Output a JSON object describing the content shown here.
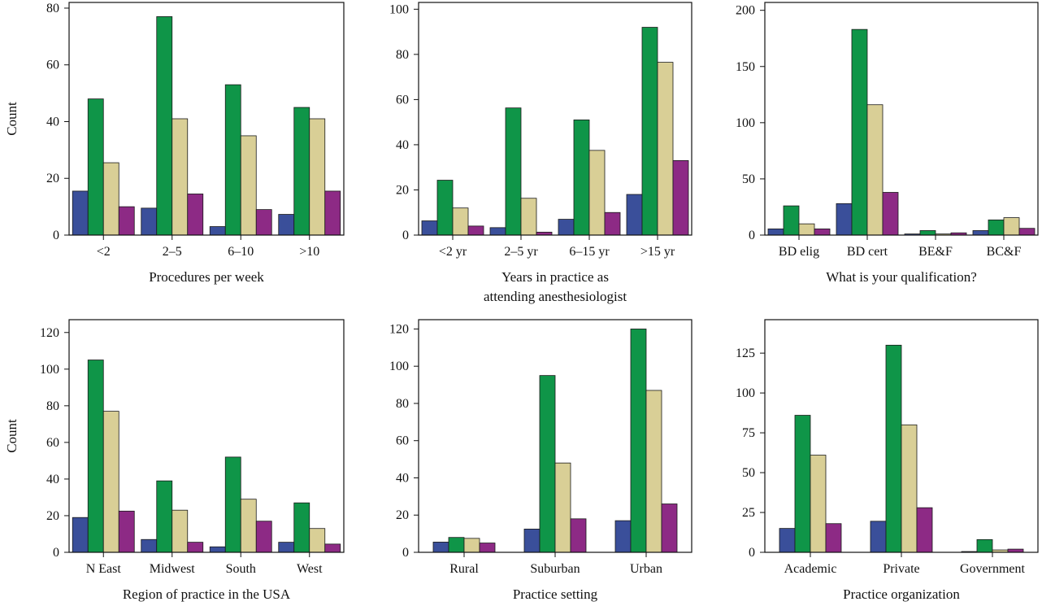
{
  "colors": {
    "series": [
      "#3a4f9a",
      "#0f9548",
      "#d9cf96",
      "#8d2a85"
    ],
    "frame": "#111111"
  },
  "chart_data": [
    {
      "type": "bar",
      "title": "",
      "ylabel": "Count",
      "xlabel": [
        "Procedures per week"
      ],
      "categories": [
        "<2",
        "2–5",
        "6–10",
        ">10"
      ],
      "ylim": [
        0,
        82
      ],
      "yticks": [
        0,
        20,
        40,
        60,
        80
      ],
      "series": [
        {
          "values": [
            15.5,
            9.5,
            3,
            7.3
          ]
        },
        {
          "values": [
            48,
            77,
            53,
            45
          ]
        },
        {
          "values": [
            25.5,
            41,
            35,
            41
          ]
        },
        {
          "values": [
            10,
            14.5,
            9,
            15.5
          ]
        }
      ],
      "grid": false,
      "legend": "none"
    },
    {
      "type": "bar",
      "title": "",
      "ylabel": "",
      "xlabel": [
        "Years in practice as",
        "attending anesthesiologist"
      ],
      "categories": [
        "<2 yr",
        "2–5 yr",
        "6–15 yr",
        ">15 yr"
      ],
      "ylim": [
        0,
        103
      ],
      "yticks": [
        0,
        20,
        40,
        60,
        80,
        100
      ],
      "series": [
        {
          "values": [
            6.3,
            3.3,
            7,
            18
          ]
        },
        {
          "values": [
            24.3,
            56.3,
            51,
            92
          ]
        },
        {
          "values": [
            12,
            16.3,
            37.5,
            76.5
          ]
        },
        {
          "values": [
            4,
            1.3,
            10,
            33
          ]
        }
      ],
      "grid": false,
      "legend": "none"
    },
    {
      "type": "bar",
      "title": "",
      "ylabel": "",
      "xlabel": [
        "What is your qualification?"
      ],
      "categories": [
        "BD elig",
        "BD cert",
        "BE&F",
        "BC&F"
      ],
      "ylim": [
        0,
        207
      ],
      "yticks": [
        0,
        50,
        100,
        150,
        200
      ],
      "series": [
        {
          "values": [
            5.5,
            28,
            1,
            4
          ]
        },
        {
          "values": [
            26,
            183,
            4,
            13.5
          ]
        },
        {
          "values": [
            10,
            116,
            1,
            15.5
          ]
        },
        {
          "values": [
            5.5,
            38,
            2,
            6
          ]
        }
      ],
      "grid": false,
      "legend": "none"
    },
    {
      "type": "bar",
      "title": "",
      "ylabel": "Count",
      "xlabel": [
        "Region of practice in the USA"
      ],
      "categories": [
        "N East",
        "Midwest",
        "South",
        "West"
      ],
      "ylim": [
        0,
        127
      ],
      "yticks": [
        0,
        20,
        40,
        60,
        80,
        100,
        120
      ],
      "series": [
        {
          "values": [
            19,
            7,
            3,
            5.5
          ]
        },
        {
          "values": [
            105,
            39,
            52,
            27
          ]
        },
        {
          "values": [
            77,
            23,
            29,
            13
          ]
        },
        {
          "values": [
            22.5,
            5.5,
            17,
            4.5
          ]
        }
      ],
      "grid": false,
      "legend": "none"
    },
    {
      "type": "bar",
      "title": "",
      "ylabel": "",
      "xlabel": [
        "Practice setting"
      ],
      "categories": [
        "Rural",
        "Suburban",
        "Urban"
      ],
      "ylim": [
        0,
        125
      ],
      "yticks": [
        0,
        20,
        40,
        60,
        80,
        100,
        120
      ],
      "series": [
        {
          "values": [
            5.5,
            12.5,
            17
          ]
        },
        {
          "values": [
            8,
            95,
            120
          ]
        },
        {
          "values": [
            7.5,
            48,
            87
          ]
        },
        {
          "values": [
            5,
            18,
            26
          ]
        }
      ],
      "grid": false,
      "legend": "none"
    },
    {
      "type": "bar",
      "title": "",
      "ylabel": "",
      "xlabel": [
        "Practice organization"
      ],
      "categories": [
        "Academic",
        "Private",
        "Government"
      ],
      "ylim": [
        0,
        146
      ],
      "yticks": [
        0,
        25,
        50,
        75,
        100,
        125
      ],
      "series": [
        {
          "values": [
            15,
            19.5,
            0.5
          ]
        },
        {
          "values": [
            86,
            130,
            8
          ]
        },
        {
          "values": [
            61,
            80,
            1.5
          ]
        },
        {
          "values": [
            18,
            28,
            2
          ]
        }
      ],
      "grid": false,
      "legend": "none"
    }
  ]
}
